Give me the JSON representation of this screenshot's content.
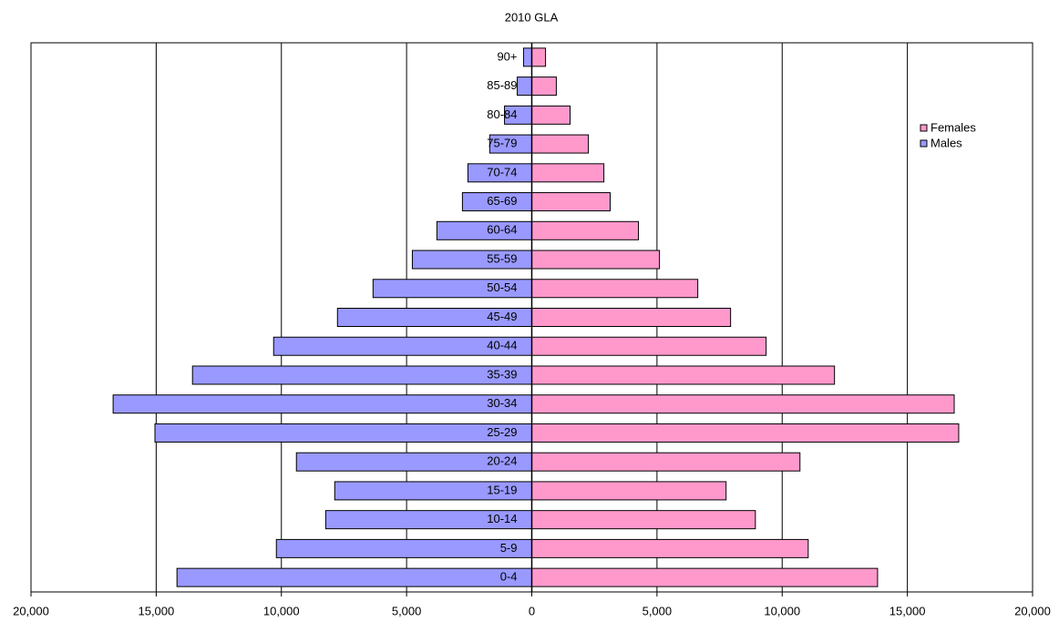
{
  "chart_data": {
    "type": "pyramid",
    "title": "2010 GLA",
    "categories": [
      "0-4",
      "5-9",
      "10-14",
      "15-19",
      "20-24",
      "25-29",
      "30-34",
      "35-39",
      "40-44",
      "45-49",
      "50-54",
      "55-59",
      "60-64",
      "65-69",
      "70-74",
      "75-79",
      "80-84",
      "85-89",
      "90+"
    ],
    "series": [
      {
        "name": "Females",
        "color": "#ff99cc",
        "values": [
          13810,
          11040,
          8930,
          7760,
          10710,
          17050,
          16870,
          12090,
          9360,
          7940,
          6630,
          5100,
          4260,
          3130,
          2880,
          2260,
          1530,
          980,
          550
        ]
      },
      {
        "name": "Males",
        "color": "#9999ff",
        "values": [
          -14170,
          -10200,
          -8230,
          -7870,
          -9400,
          -15050,
          -16720,
          -13550,
          -10310,
          -7760,
          -6340,
          -4770,
          -3790,
          -2770,
          -2550,
          -1680,
          -1090,
          -580,
          -330
        ]
      }
    ],
    "xlim": [
      -20000,
      20000
    ],
    "xticks": [
      {
        "value": -20000,
        "label": "20,000"
      },
      {
        "value": -15000,
        "label": "15,000"
      },
      {
        "value": -10000,
        "label": "10,000"
      },
      {
        "value": -5000,
        "label": "5,000"
      },
      0,
      {
        "value": 5000,
        "label": "5,000"
      },
      {
        "value": 10000,
        "label": "10,000"
      },
      {
        "value": 15000,
        "label": "15,000"
      },
      {
        "value": 20000,
        "label": "20,000"
      }
    ],
    "grid": true,
    "legend": "right"
  }
}
